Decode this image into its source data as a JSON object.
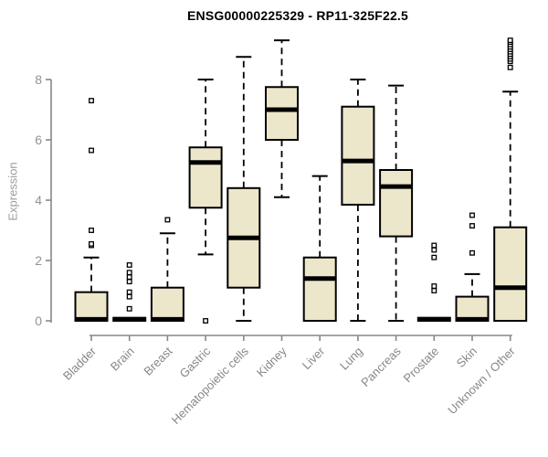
{
  "chart_data": {
    "type": "boxplot",
    "title": "ENSG00000225329 - RP11-325F22.5",
    "ylabel": "Expression",
    "xlabel": "",
    "ylim": [
      0,
      9.5
    ],
    "yticks": [
      0,
      2,
      4,
      6,
      8
    ],
    "grid": false,
    "legend": "none",
    "categories": [
      "Bladder",
      "Brain",
      "Breast",
      "Gastric",
      "Hematopoietic cells",
      "Kidney",
      "Liver",
      "Lung",
      "Pancreas",
      "Prostate",
      "Skin",
      "Unknown / Other"
    ],
    "series": [
      {
        "name": "Bladder",
        "whisker_low": 0,
        "q1": 0,
        "median": 0.05,
        "q3": 0.95,
        "whisker_high": 2.1,
        "outliers": [
          2.5,
          2.55,
          3.0,
          5.65,
          7.3
        ]
      },
      {
        "name": "Brain",
        "whisker_low": 0,
        "q1": 0,
        "median": 0.05,
        "q3": 0.1,
        "whisker_high": 0.1,
        "outliers": [
          0.4,
          0.8,
          0.95,
          1.3,
          1.45,
          1.6,
          1.85
        ]
      },
      {
        "name": "Breast",
        "whisker_low": 0,
        "q1": 0,
        "median": 0.05,
        "q3": 1.1,
        "whisker_high": 2.9,
        "outliers": [
          3.35
        ]
      },
      {
        "name": "Gastric",
        "whisker_low": 2.2,
        "q1": 3.75,
        "median": 5.25,
        "q3": 5.75,
        "whisker_high": 8.0,
        "outliers": [
          0.0
        ]
      },
      {
        "name": "Hematopoietic cells",
        "whisker_low": 0,
        "q1": 1.1,
        "median": 2.75,
        "q3": 4.4,
        "whisker_high": 8.75,
        "outliers": []
      },
      {
        "name": "Kidney",
        "whisker_low": 4.1,
        "q1": 6.0,
        "median": 7.0,
        "q3": 7.75,
        "whisker_high": 9.3,
        "outliers": []
      },
      {
        "name": "Liver",
        "whisker_low": 0,
        "q1": 0,
        "median": 1.4,
        "q3": 2.1,
        "whisker_high": 4.8,
        "outliers": []
      },
      {
        "name": "Lung",
        "whisker_low": 0,
        "q1": 3.85,
        "median": 5.3,
        "q3": 7.1,
        "whisker_high": 8.0,
        "outliers": []
      },
      {
        "name": "Pancreas",
        "whisker_low": 0,
        "q1": 2.8,
        "median": 4.45,
        "q3": 5.0,
        "whisker_high": 7.8,
        "outliers": []
      },
      {
        "name": "Prostate",
        "whisker_low": 0,
        "q1": 0,
        "median": 0.05,
        "q3": 0.1,
        "whisker_high": 0.1,
        "outliers": [
          1.0,
          1.15,
          2.1,
          2.35,
          2.5
        ]
      },
      {
        "name": "Skin",
        "whisker_low": 0,
        "q1": 0,
        "median": 0.05,
        "q3": 0.8,
        "whisker_high": 1.55,
        "outliers": [
          2.25,
          3.15,
          3.5
        ]
      },
      {
        "name": "Unknown / Other",
        "whisker_low": 0,
        "q1": 0,
        "median": 1.1,
        "q3": 3.1,
        "whisker_high": 7.6,
        "outliers": [
          8.4,
          8.6,
          8.68,
          8.76,
          8.84,
          8.92,
          9.0,
          9.08,
          9.16,
          9.24,
          9.3
        ]
      }
    ],
    "colors": {
      "background": "#ffffff",
      "box_fill": "#ece6cb",
      "box_stroke": "#000000",
      "median": "#000000",
      "whisker": "#000000",
      "outlier_stroke": "#000000",
      "outlier_fill": "#ffffff",
      "axis": "#878787",
      "y_tick_label": "#8f939b",
      "x_tick_label": "#878787",
      "title": "#000000",
      "ylabel_color": "#9b9b9b"
    }
  }
}
